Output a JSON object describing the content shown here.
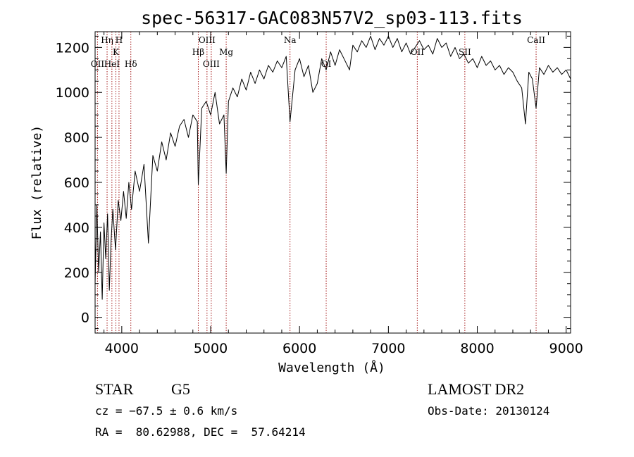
{
  "chart_data": {
    "type": "line",
    "title": "spec-56317-GAC083N57V2_sp03-113.fits",
    "xlabel": "Wavelength (Å)",
    "ylabel": "Flux (relative)",
    "xlim": [
      3700,
      9050
    ],
    "ylim": [
      -70,
      1270
    ],
    "xticks": [
      4000,
      5000,
      6000,
      7000,
      8000,
      9000
    ],
    "yticks": [
      0,
      200,
      400,
      600,
      800,
      1000,
      1200
    ],
    "grid": false,
    "series": [
      {
        "color": "#000000",
        "x": [
          3700,
          3720,
          3740,
          3760,
          3780,
          3800,
          3820,
          3840,
          3860,
          3880,
          3900,
          3930,
          3960,
          3990,
          4020,
          4050,
          4080,
          4110,
          4150,
          4200,
          4250,
          4300,
          4350,
          4400,
          4450,
          4500,
          4550,
          4600,
          4650,
          4700,
          4750,
          4800,
          4850,
          4861,
          4900,
          4950,
          5000,
          5050,
          5100,
          5150,
          5175,
          5200,
          5250,
          5300,
          5350,
          5400,
          5450,
          5500,
          5550,
          5600,
          5650,
          5700,
          5750,
          5800,
          5850,
          5893,
          5950,
          6000,
          6050,
          6100,
          6150,
          6200,
          6250,
          6300,
          6350,
          6400,
          6450,
          6500,
          6563,
          6600,
          6650,
          6700,
          6750,
          6800,
          6850,
          6900,
          6950,
          7000,
          7050,
          7100,
          7150,
          7200,
          7250,
          7300,
          7350,
          7400,
          7450,
          7500,
          7550,
          7600,
          7650,
          7700,
          7750,
          7800,
          7850,
          7900,
          7950,
          8000,
          8050,
          8100,
          8150,
          8200,
          8250,
          8300,
          8350,
          8400,
          8450,
          8500,
          8542,
          8580,
          8620,
          8662,
          8700,
          8750,
          8800,
          8850,
          8900,
          8950,
          9000,
          9050
        ],
        "values": [
          150,
          500,
          200,
          380,
          80,
          420,
          260,
          460,
          120,
          340,
          480,
          300,
          520,
          430,
          560,
          440,
          600,
          480,
          650,
          560,
          680,
          330,
          720,
          650,
          780,
          700,
          820,
          760,
          850,
          880,
          800,
          900,
          870,
          590,
          930,
          960,
          900,
          1000,
          860,
          900,
          640,
          960,
          1020,
          980,
          1060,
          1010,
          1090,
          1040,
          1100,
          1060,
          1120,
          1090,
          1140,
          1110,
          1160,
          870,
          1100,
          1150,
          1070,
          1120,
          1000,
          1040,
          1150,
          1100,
          1180,
          1120,
          1190,
          1150,
          1100,
          1210,
          1180,
          1230,
          1200,
          1250,
          1190,
          1240,
          1210,
          1250,
          1200,
          1240,
          1180,
          1220,
          1170,
          1200,
          1230,
          1190,
          1210,
          1170,
          1240,
          1200,
          1220,
          1160,
          1200,
          1150,
          1170,
          1130,
          1150,
          1110,
          1160,
          1120,
          1140,
          1100,
          1120,
          1080,
          1110,
          1090,
          1050,
          1020,
          860,
          1090,
          1060,
          930,
          1110,
          1080,
          1120,
          1090,
          1110,
          1080,
          1100,
          1060
        ]
      }
    ],
    "line_markers": [
      {
        "label": "OII",
        "wavelength": 3727,
        "row": 3
      },
      {
        "label": "Hη",
        "wavelength": 3835,
        "row": 1
      },
      {
        "label": "K",
        "wavelength": 3934,
        "row": 2
      },
      {
        "label": "H",
        "wavelength": 3969,
        "row": 1
      },
      {
        "label": "HeI",
        "wavelength": 3889,
        "row": 3
      },
      {
        "label": "Hδ",
        "wavelength": 4102,
        "row": 3
      },
      {
        "label": "Hβ",
        "wavelength": 4861,
        "row": 2
      },
      {
        "label": "OIII",
        "wavelength": 4959,
        "row": 1
      },
      {
        "label": "OIII",
        "wavelength": 5007,
        "row": 3
      },
      {
        "label": "Mg",
        "wavelength": 5175,
        "row": 2
      },
      {
        "label": "Na",
        "wavelength": 5893,
        "row": 1
      },
      {
        "label": "OI",
        "wavelength": 6300,
        "row": 3
      },
      {
        "label": "OII",
        "wavelength": 7325,
        "row": 2
      },
      {
        "label": "SII",
        "wavelength": 7860,
        "row": 2
      },
      {
        "label": "CaII",
        "wavelength": 8662,
        "row": 1
      }
    ],
    "marker_color": "#a31515"
  },
  "info": {
    "class": "STAR",
    "subclass": "G5",
    "survey": "LAMOST DR2",
    "cz": "cz = −67.5 ± 0.6 km/s",
    "obs_date": "Obs-Date: 20130124",
    "radec": "RA =  80.62988, DEC =  57.64214"
  }
}
